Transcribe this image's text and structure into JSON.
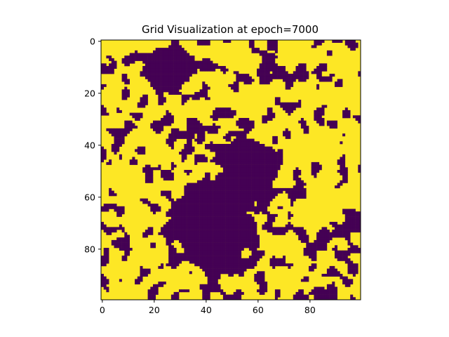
{
  "chart_data": {
    "type": "heatmap",
    "title": "Grid Visualization at epoch=7000",
    "xlabel": "",
    "ylabel": "",
    "grid_size": [
      100,
      100
    ],
    "xlim": [
      -0.5,
      99.5
    ],
    "ylim": [
      99.5,
      -0.5
    ],
    "xticks": [
      0,
      20,
      40,
      60,
      80
    ],
    "yticks": [
      0,
      20,
      40,
      60,
      80
    ],
    "colormap": "viridis",
    "values_present": [
      0,
      1
    ],
    "colors": {
      "0": "#440154",
      "1": "#fde725"
    },
    "approx_fraction_of_ones": 0.62,
    "grid": false,
    "colorbar": false
  }
}
